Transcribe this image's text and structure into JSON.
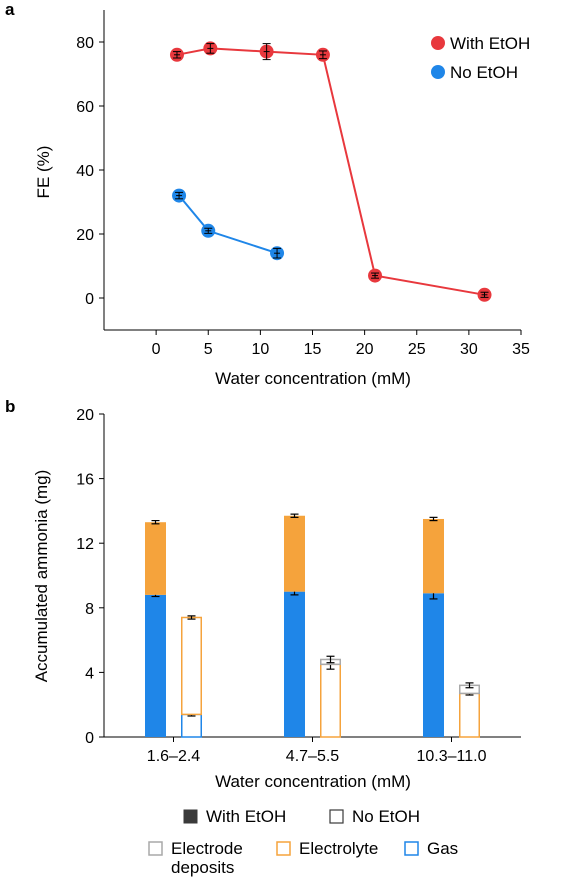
{
  "chart_data": [
    {
      "panel": "a",
      "type": "line",
      "xlabel": "Water concentration (mM)",
      "ylabel": "FE (%)",
      "xlim": [
        -5,
        35
      ],
      "ylim": [
        -10,
        90
      ],
      "xticks": [
        "0",
        "5",
        "10",
        "15",
        "20",
        "25",
        "30",
        "35"
      ],
      "yticks": [
        "0",
        "20",
        "40",
        "60",
        "80"
      ],
      "grid": false,
      "legend_position": "top-right",
      "series": [
        {
          "name": "With EtOH",
          "color": "#e8383d",
          "points": [
            {
              "x": 2.0,
              "y": 76,
              "err": 1
            },
            {
              "x": 5.2,
              "y": 78,
              "err": 1.5
            },
            {
              "x": 10.6,
              "y": 77,
              "err": 2.5
            },
            {
              "x": 16.0,
              "y": 76,
              "err": 1.2
            },
            {
              "x": 21.0,
              "y": 7,
              "err": 0.8
            },
            {
              "x": 31.5,
              "y": 1,
              "err": 0.8
            }
          ]
        },
        {
          "name": "No EtOH",
          "color": "#1f86e8",
          "points": [
            {
              "x": 2.2,
              "y": 32,
              "err": 1
            },
            {
              "x": 5.0,
              "y": 21,
              "err": 0.8
            },
            {
              "x": 11.6,
              "y": 14,
              "err": 1.5
            }
          ]
        }
      ]
    },
    {
      "panel": "b",
      "type": "bar",
      "xlabel": "Water concentration (mM)",
      "ylabel": "Accumulated ammonia (mg)",
      "ylim": [
        0,
        20
      ],
      "yticks": [
        "0",
        "4",
        "8",
        "12",
        "16",
        "20"
      ],
      "categories": [
        "1.6–2.4",
        "4.7–5.5",
        "10.3–11.0"
      ],
      "grid": false,
      "legend_position": "bottom",
      "stack_components": [
        {
          "name": "Gas",
          "color": "#1f86e8"
        },
        {
          "name": "Electrolyte",
          "color": "#f5a33c"
        },
        {
          "name": "Electrode deposits",
          "color": "#a9a9a9"
        }
      ],
      "series": [
        {
          "name": "With EtOH",
          "fill": "solid",
          "stacks": [
            {
              "Gas": 8.8,
              "Gas_err": 0.1,
              "Electrolyte": 4.5,
              "Electrolyte_err": 0.1,
              "Electrode deposits": 0
            },
            {
              "Gas": 9.0,
              "Gas_err": 0.2,
              "Electrolyte": 4.7,
              "Electrolyte_err": 0.1,
              "Electrode deposits": 0
            },
            {
              "Gas": 8.9,
              "Gas_err": 0.35,
              "Electrolyte": 4.6,
              "Electrolyte_err": 0.1,
              "Electrode deposits": 0
            }
          ]
        },
        {
          "name": "No EtOH",
          "fill": "outline",
          "stacks": [
            {
              "Gas": 1.4,
              "Gas_err": 0.1,
              "Electrolyte": 6.0,
              "Electrolyte_err": 0.1,
              "Electrode deposits": 0
            },
            {
              "Gas": 0,
              "Electrolyte": 4.5,
              "Electrolyte_err": 0.3,
              "Electrode deposits": 0.3,
              "Electrode deposits_err": 0.2
            },
            {
              "Gas": 0,
              "Electrolyte": 2.7,
              "Electrolyte_err": 0.1,
              "Electrode deposits": 0.5,
              "Electrode deposits_err": 0.15
            }
          ]
        }
      ]
    }
  ],
  "legend_b": {
    "with_etoh": "With EtOH",
    "no_etoh": "No EtOH",
    "electrode_line1": "Electrode",
    "electrode_line2": "deposits",
    "electrolyte": "Electrolyte",
    "gas": "Gas"
  }
}
